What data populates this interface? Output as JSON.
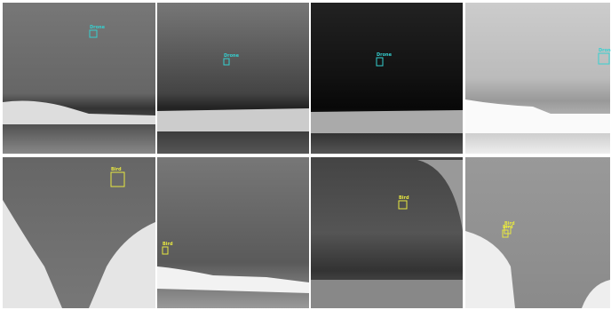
{
  "panels": [
    {
      "detections": [
        {
          "label": "Drone"
        }
      ]
    },
    {
      "detections": [
        {
          "label": "Drone"
        }
      ]
    },
    {
      "detections": [
        {
          "label": "Drone"
        }
      ]
    },
    {
      "detections": [
        {
          "label": "Drone"
        }
      ]
    },
    {
      "detections": [
        {
          "label": "Bird"
        }
      ]
    },
    {
      "detections": [
        {
          "label": "Bird"
        }
      ]
    },
    {
      "detections": [
        {
          "label": "Bird"
        }
      ]
    },
    {
      "detections": [
        {
          "label": "Bird"
        },
        {
          "label": "Bird"
        }
      ]
    }
  ]
}
